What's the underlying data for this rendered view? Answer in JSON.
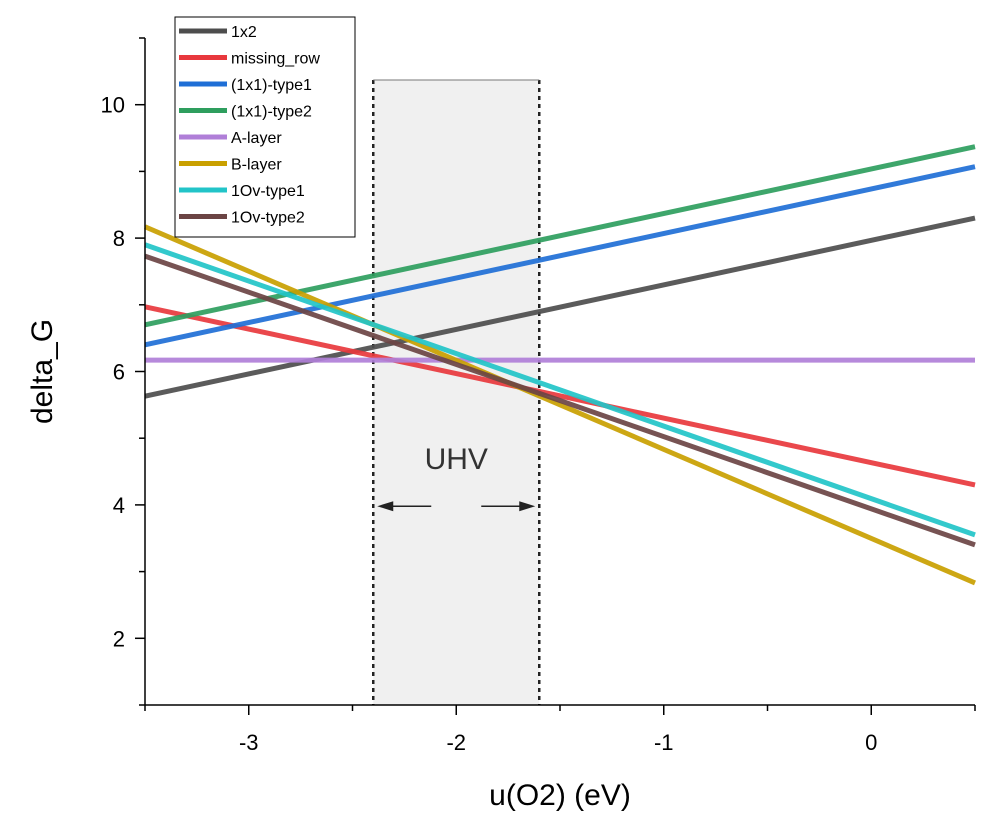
{
  "chart_data": {
    "type": "line",
    "title": "",
    "xlabel": "u(O2) (eV)",
    "ylabel": "delta_G",
    "xlim": [
      -3.5,
      0.5
    ],
    "ylim": [
      1,
      11
    ],
    "xticks": [
      -3,
      -2,
      -1,
      0
    ],
    "xtick_labels": [
      "-3",
      "-2",
      "-1",
      "0"
    ],
    "yticks": [
      2,
      4,
      6,
      8,
      10
    ],
    "ytick_labels": [
      "2",
      "4",
      "6",
      "8",
      "10"
    ],
    "grid": false,
    "legend_position": "top-left",
    "series": [
      {
        "name": "1x2",
        "color": "#4d4d4d",
        "x": [
          -3.5,
          0.5
        ],
        "y": [
          5.63,
          8.3
        ]
      },
      {
        "name": "missing_row",
        "color": "#e8383d",
        "x": [
          -3.5,
          0.5
        ],
        "y": [
          6.97,
          4.3
        ]
      },
      {
        "name": "(1x1)-type1",
        "color": "#1f6fd6",
        "x": [
          -3.5,
          0.5
        ],
        "y": [
          6.4,
          9.07
        ]
      },
      {
        "name": "(1x1)-type2",
        "color": "#2e9e5e",
        "x": [
          -3.5,
          0.5
        ],
        "y": [
          6.7,
          9.37
        ]
      },
      {
        "name": "A-layer",
        "color": "#b07fd8",
        "x": [
          -3.5,
          0.5
        ],
        "y": [
          6.17,
          6.17
        ]
      },
      {
        "name": "B-layer",
        "color": "#c9a000",
        "x": [
          -3.5,
          0.5
        ],
        "y": [
          8.17,
          2.83
        ]
      },
      {
        "name": "1Ov-type1",
        "color": "#22c4c8",
        "x": [
          -3.5,
          0.5
        ],
        "y": [
          7.9,
          3.55
        ]
      },
      {
        "name": "1Ov-type2",
        "color": "#6b4444",
        "x": [
          -3.5,
          0.5
        ],
        "y": [
          7.73,
          3.4
        ]
      }
    ],
    "annotations": [
      {
        "type": "shaded-region",
        "x_range": [
          -2.4,
          -1.6
        ],
        "y_top": 10.37,
        "label": "UHV",
        "label_y": 4.7,
        "arrow_y": 3.98
      }
    ]
  }
}
